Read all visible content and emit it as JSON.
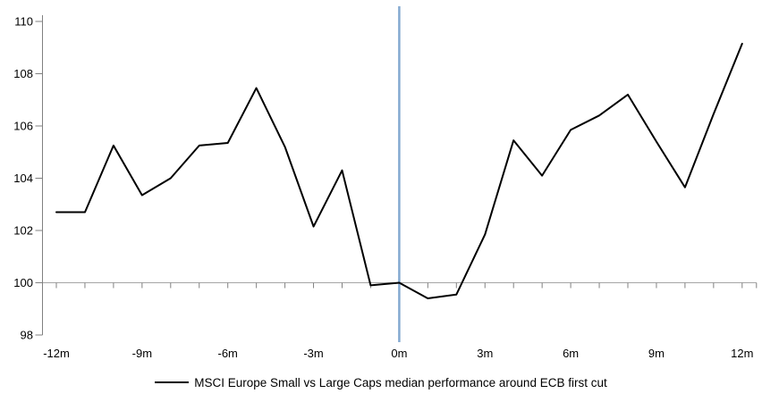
{
  "chart_data": {
    "type": "line",
    "title": "",
    "xlabel": "",
    "ylabel": "",
    "x_months": [
      -12,
      -11,
      -10,
      -9,
      -8,
      -7,
      -6,
      -5,
      -4,
      -3,
      -2,
      -1,
      0,
      1,
      2,
      3,
      4,
      5,
      6,
      7,
      8,
      9,
      10,
      11,
      12
    ],
    "series": [
      {
        "name": "MSCI Europe Small vs Large Caps median performance around ECB first cut",
        "color": "#000000",
        "values": [
          102.7,
          102.7,
          105.25,
          103.35,
          104.0,
          105.25,
          105.35,
          107.45,
          105.2,
          102.15,
          104.3,
          99.9,
          100.0,
          99.4,
          99.55,
          101.85,
          105.45,
          104.1,
          105.85,
          106.4,
          107.2,
          105.4,
          103.65,
          106.45,
          109.15
        ]
      }
    ],
    "x_tick_labels": [
      {
        "month": -12,
        "label": "-12m"
      },
      {
        "month": -9,
        "label": "-9m"
      },
      {
        "month": -6,
        "label": "-6m"
      },
      {
        "month": -3,
        "label": "-3m"
      },
      {
        "month": 0,
        "label": "0m"
      },
      {
        "month": 3,
        "label": "3m"
      },
      {
        "month": 6,
        "label": "6m"
      },
      {
        "month": 9,
        "label": "9m"
      },
      {
        "month": 12,
        "label": "12m"
      }
    ],
    "y_ticks": [
      {
        "value": 98,
        "label": "98"
      },
      {
        "value": 100,
        "label": "100"
      },
      {
        "value": 102,
        "label": "102"
      },
      {
        "value": 104,
        "label": "104"
      },
      {
        "value": 106,
        "label": "106"
      },
      {
        "value": 108,
        "label": "108"
      },
      {
        "value": 110,
        "label": "110"
      }
    ],
    "ylim": [
      98,
      110.5
    ],
    "xlim_months": [
      -12,
      12
    ],
    "baseline_value": 100,
    "event_line": {
      "x_month": 0,
      "color": "#84A9D1"
    },
    "grid": "baseline-only",
    "legend_position": "bottom-center"
  },
  "colors": {
    "series_line": "#000000",
    "event_line": "#84A9D1",
    "axis": "#808080",
    "baseline_gridline": "#a6a6a6",
    "text": "#000000",
    "background": "#ffffff"
  }
}
